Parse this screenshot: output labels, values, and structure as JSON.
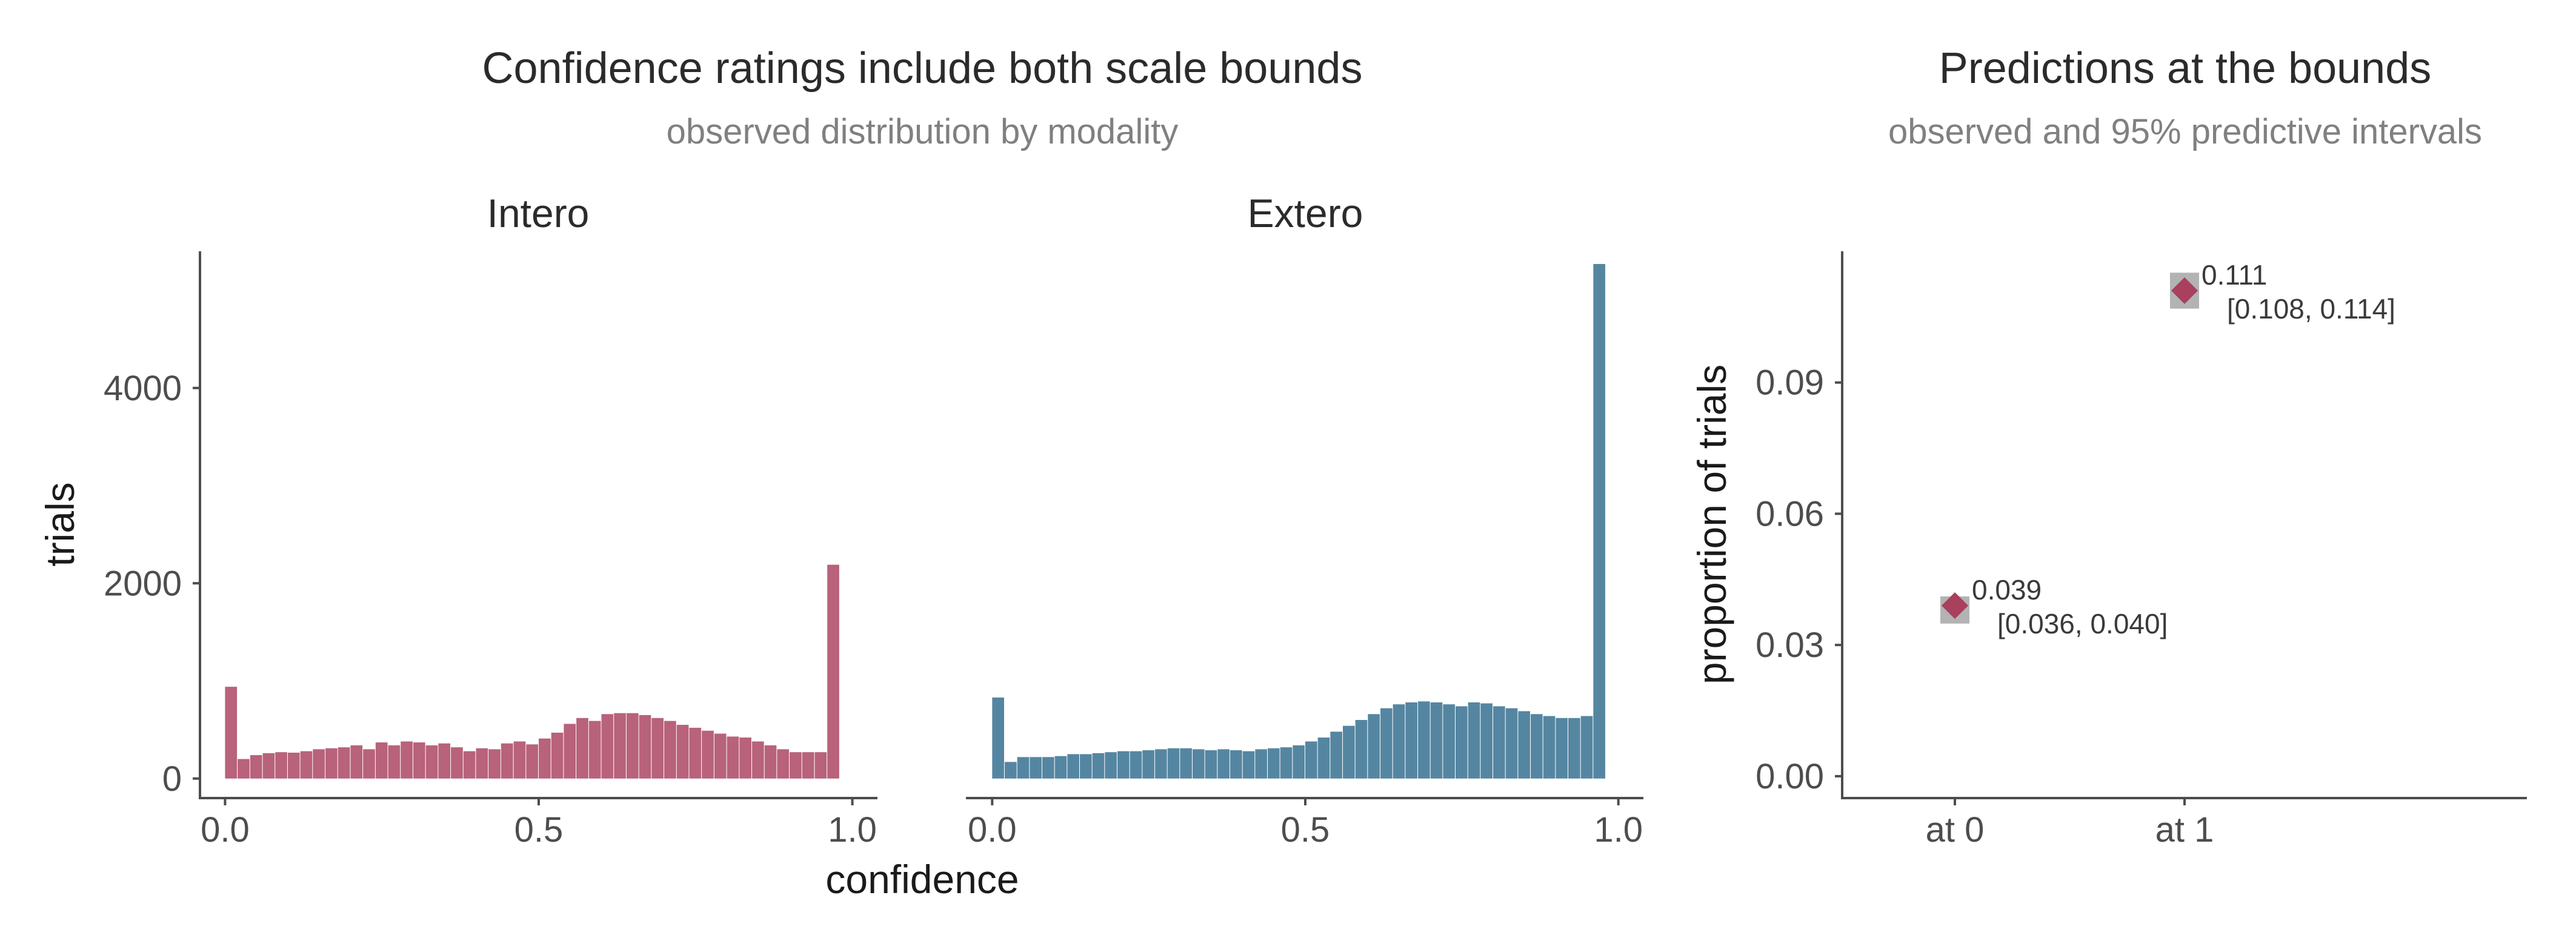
{
  "colors": {
    "intero": "#a8405e",
    "extero": "#2f6b8c",
    "point": "#a8405e",
    "interval": "#a6a6a6"
  },
  "chart_data": [
    {
      "type": "bar",
      "title": "Confidence ratings include both scale bounds",
      "subtitle": "observed distribution by modality",
      "xlabel": "confidence",
      "ylabel": "trials",
      "xlim": [
        -0.04,
        1.04
      ],
      "ylim": [
        -200,
        5400
      ],
      "x_ticks": [
        "0.0",
        "0.5",
        "1.0"
      ],
      "y_ticks": [
        "0",
        "2000",
        "4000"
      ],
      "y_tick_values": [
        0,
        2000,
        4000
      ],
      "bin_width": 0.02,
      "grid": false,
      "panels": [
        {
          "name": "Intero",
          "color_key": "intero",
          "bins": [
            0.0,
            0.02,
            0.04,
            0.06,
            0.08,
            0.1,
            0.12,
            0.14,
            0.16,
            0.18,
            0.2,
            0.22,
            0.24,
            0.26,
            0.28,
            0.3,
            0.32,
            0.34,
            0.36,
            0.38,
            0.4,
            0.42,
            0.44,
            0.46,
            0.48,
            0.5,
            0.52,
            0.54,
            0.56,
            0.58,
            0.6,
            0.62,
            0.64,
            0.66,
            0.68,
            0.7,
            0.72,
            0.74,
            0.76,
            0.78,
            0.8,
            0.82,
            0.84,
            0.86,
            0.88,
            0.9,
            0.92,
            0.94,
            0.96,
            0.98
          ],
          "values": [
            940,
            200,
            240,
            260,
            270,
            265,
            280,
            300,
            310,
            320,
            340,
            300,
            370,
            340,
            380,
            370,
            340,
            360,
            320,
            280,
            310,
            300,
            360,
            380,
            350,
            410,
            470,
            560,
            620,
            590,
            660,
            670,
            670,
            650,
            620,
            590,
            550,
            520,
            490,
            460,
            430,
            420,
            380,
            340,
            300,
            270,
            270,
            270,
            2190,
            0
          ]
        },
        {
          "name": "Extero",
          "color_key": "extero",
          "bins": [
            0.0,
            0.02,
            0.04,
            0.06,
            0.08,
            0.1,
            0.12,
            0.14,
            0.16,
            0.18,
            0.2,
            0.22,
            0.24,
            0.26,
            0.28,
            0.3,
            0.32,
            0.34,
            0.36,
            0.38,
            0.4,
            0.42,
            0.44,
            0.46,
            0.48,
            0.5,
            0.52,
            0.54,
            0.56,
            0.58,
            0.6,
            0.62,
            0.64,
            0.66,
            0.68,
            0.7,
            0.72,
            0.74,
            0.76,
            0.78,
            0.8,
            0.82,
            0.84,
            0.86,
            0.88,
            0.9,
            0.92,
            0.94,
            0.96,
            0.98
          ],
          "values": [
            830,
            170,
            220,
            220,
            220,
            230,
            250,
            250,
            260,
            270,
            280,
            280,
            290,
            300,
            310,
            310,
            300,
            290,
            300,
            290,
            280,
            300,
            310,
            320,
            340,
            380,
            420,
            480,
            540,
            600,
            660,
            720,
            760,
            780,
            790,
            780,
            760,
            740,
            780,
            770,
            740,
            720,
            690,
            660,
            640,
            620,
            620,
            640,
            5270,
            0
          ]
        }
      ]
    },
    {
      "type": "scatter",
      "title": "Predictions at the bounds",
      "subtitle": "observed and 95% predictive intervals",
      "xlabel": "",
      "ylabel": "proportion of trials",
      "categories": [
        "at 0",
        "at 1"
      ],
      "ylim": [
        -0.005,
        0.12
      ],
      "y_ticks": [
        "0.00",
        "0.03",
        "0.06",
        "0.09"
      ],
      "y_tick_values": [
        0.0,
        0.03,
        0.06,
        0.09
      ],
      "grid": false,
      "points": [
        {
          "category": "at 0",
          "observed": 0.039,
          "interval": [
            0.036,
            0.04
          ],
          "label": "0.039",
          "interval_label": "[0.036, 0.040]"
        },
        {
          "category": "at 1",
          "observed": 0.111,
          "interval": [
            0.108,
            0.114
          ],
          "label": "0.111",
          "interval_label": "[0.108, 0.114]"
        }
      ]
    }
  ]
}
